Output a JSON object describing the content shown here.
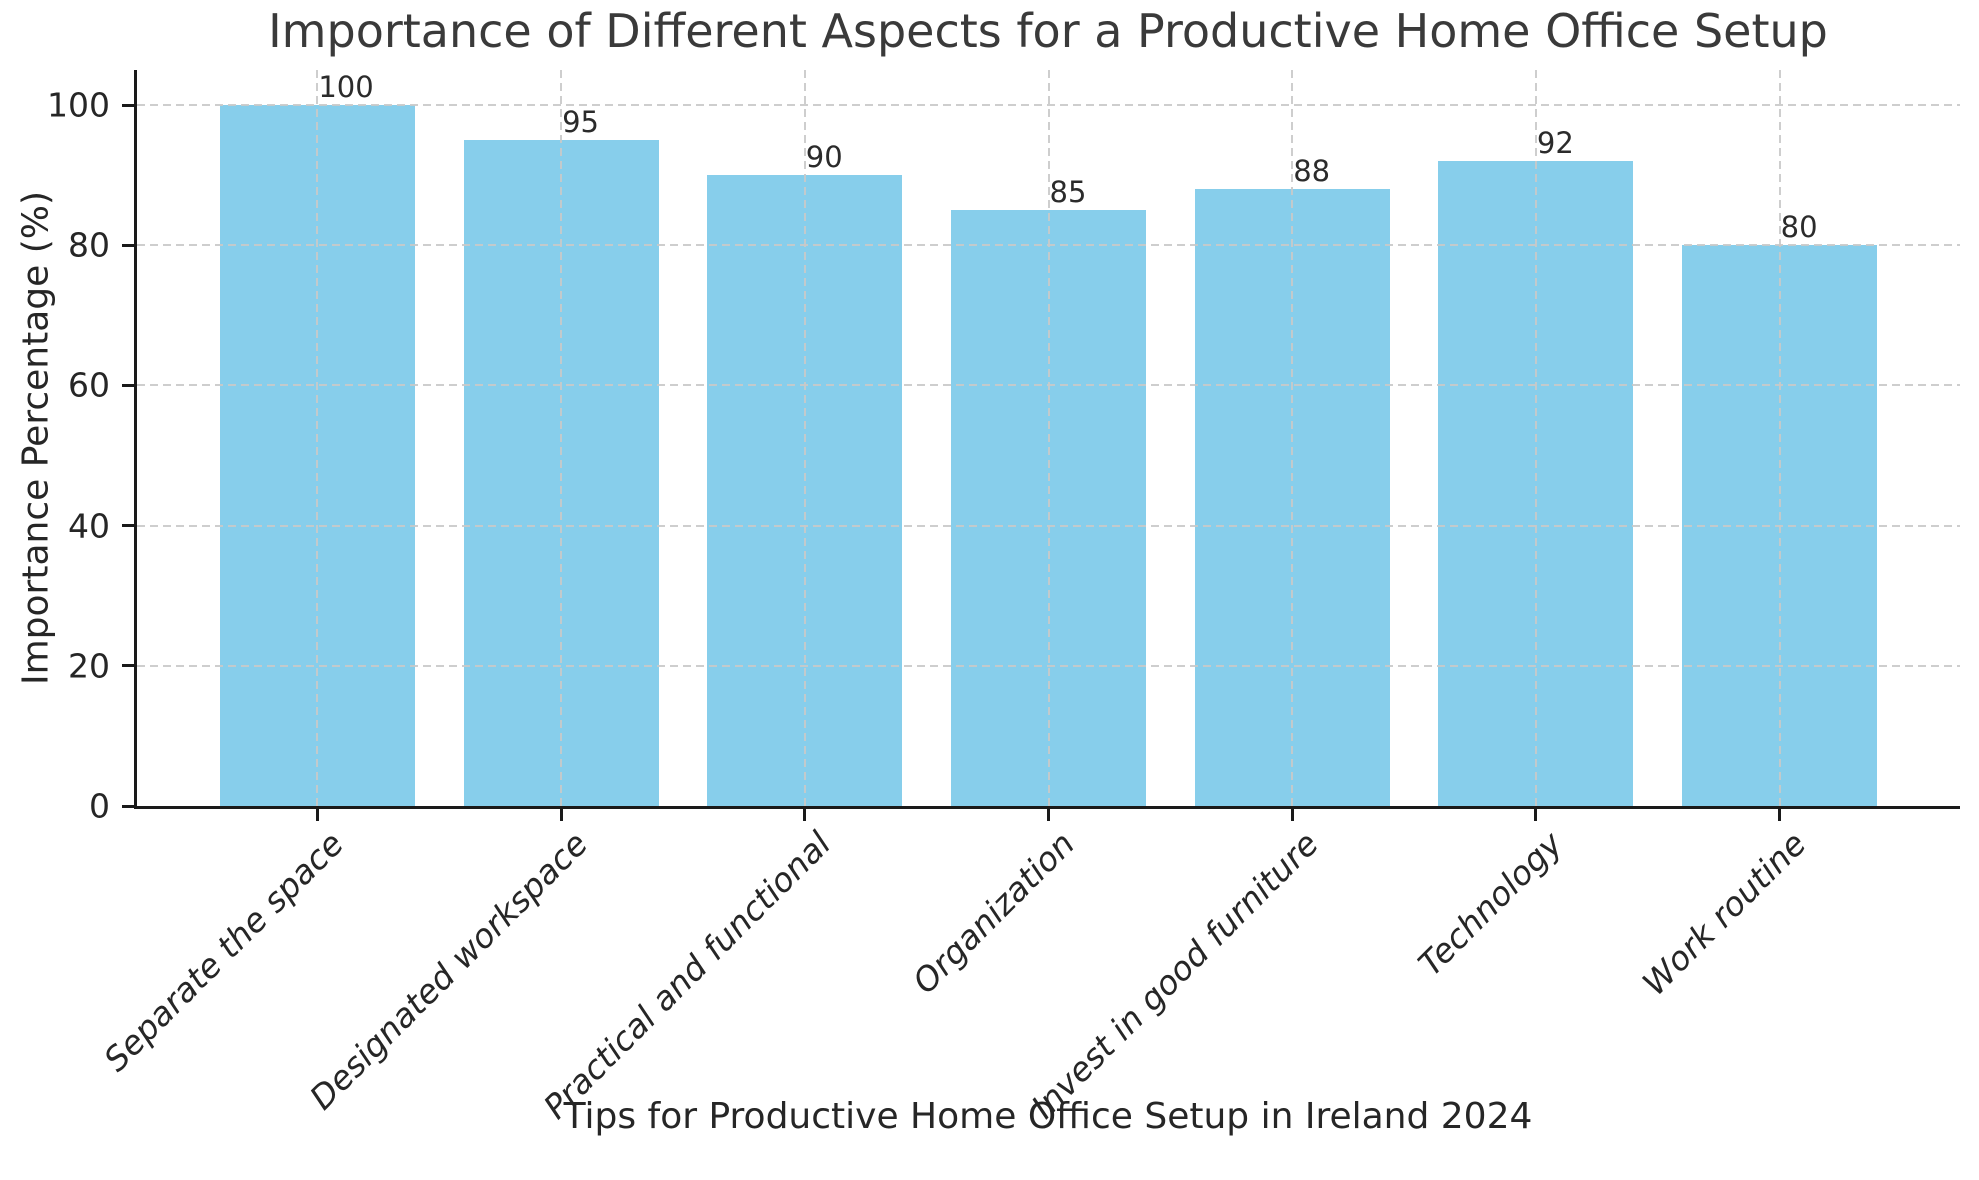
{
  "figure": {
    "title": "Importance of Different Aspects for a Productive Home Office Setup"
  },
  "chart_data": {
    "type": "bar",
    "title": "Importance of Different Aspects for a Productive Home Office Setup",
    "xlabel": "Tips for Productive Home Office Setup in Ireland 2024",
    "ylabel": "Importance Percentage (%)",
    "categories": [
      "Separate the space",
      "Designated workspace",
      "Practical and functional",
      "Organization",
      "Invest in good furniture",
      "Technology",
      "Work routine"
    ],
    "values": [
      100,
      95,
      90,
      85,
      88,
      92,
      80
    ],
    "value_labels": [
      "100",
      "95",
      "90",
      "85",
      "88",
      "92",
      "80"
    ],
    "ytick_labels": [
      "0",
      "20",
      "40",
      "60",
      "80",
      "100"
    ],
    "yticks": [
      0,
      20,
      40,
      60,
      80,
      100
    ],
    "ylim": [
      0,
      105
    ],
    "bar_color": "#87CEEB",
    "grid": {
      "style": "dashed",
      "color": "#c9c9c9",
      "horizontal": true,
      "vertical": true,
      "above_bars": true
    },
    "legend": "none",
    "xtick_style": "italic, rotated 45deg, right-anchored",
    "bar_width_fraction": 0.8,
    "x_data_range": [
      -0.74,
      6.74
    ]
  },
  "colors": {
    "background": "#ffffff",
    "bar": "#87CEEB",
    "spine": "#1a1a1a",
    "grid": "#c9c9c9",
    "title_text": "#3a3a3a",
    "tick_text": "#262626"
  }
}
